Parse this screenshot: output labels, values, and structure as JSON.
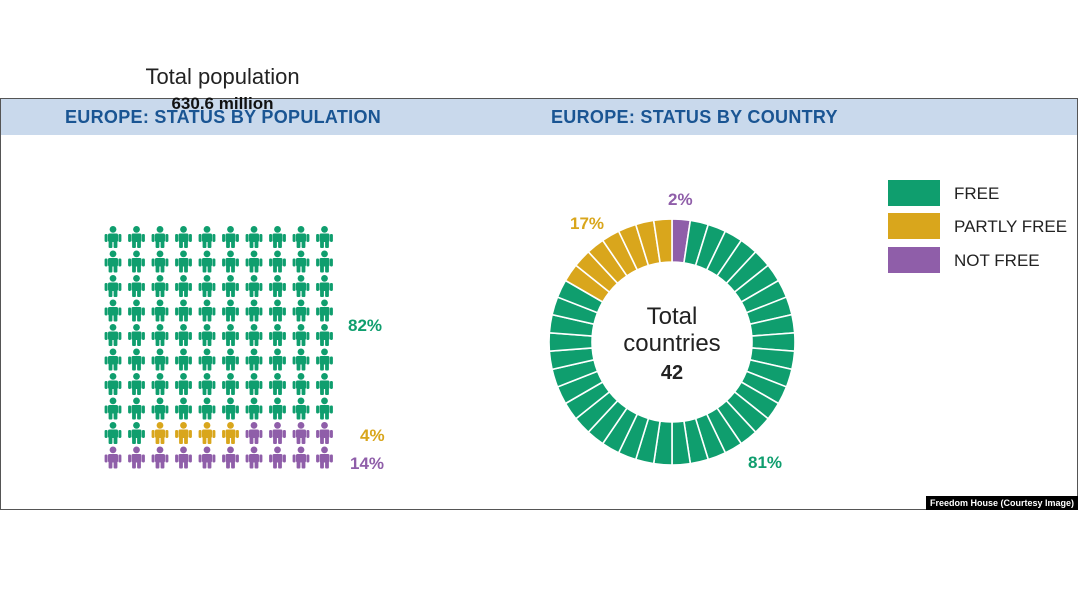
{
  "colors": {
    "free": "#0f9e6e",
    "partly_free": "#d9a61c",
    "not_free": "#8f5ea9",
    "header_band": "#c9d9ec",
    "header_text": "#1a5593"
  },
  "left_panel": {
    "heading": "EUROPE: STATUS BY POPULATION",
    "total_label": "Total population",
    "total_value": "630.6 million"
  },
  "right_panel": {
    "heading": "EUROPE: STATUS BY COUNTRY",
    "center_label_line1": "Total",
    "center_label_line2": "countries",
    "center_value": "42"
  },
  "legend": [
    {
      "label": "FREE",
      "color": "#0f9e6e"
    },
    {
      "label": "PARTLY FREE",
      "color": "#d9a61c"
    },
    {
      "label": "NOT FREE",
      "color": "#8f5ea9"
    }
  ],
  "credit": "Freedom House (Courtesy Image)",
  "chart_data": [
    {
      "type": "waffle",
      "title": "EUROPE: STATUS BY POPULATION",
      "total": "630.6 million",
      "categories": [
        "FREE",
        "PARTLY FREE",
        "NOT FREE"
      ],
      "values": [
        82,
        4,
        14
      ],
      "labels": [
        "82%",
        "4%",
        "14%"
      ],
      "grid": {
        "rows": 10,
        "cols": 10
      }
    },
    {
      "type": "pie",
      "title": "EUROPE: STATUS BY COUNTRY",
      "total": 42,
      "categories": [
        "FREE",
        "PARTLY FREE",
        "NOT FREE"
      ],
      "counts": [
        34,
        7,
        1
      ],
      "values": [
        81,
        17,
        2
      ],
      "labels": [
        "81%",
        "17%",
        "2%"
      ]
    }
  ]
}
